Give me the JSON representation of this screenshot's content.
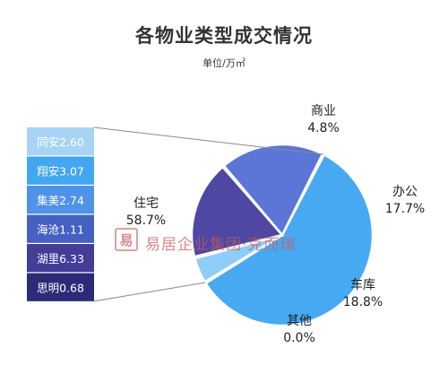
{
  "colors": {
    "residential": "#47a9f2",
    "commercial": "#8ecdf7",
    "office": "#4e48a3",
    "garage": "#5b76d6",
    "other": "#8a8a8a",
    "label_text": "#222222",
    "leader_line": "#8a8a8a"
  },
  "watermark": {
    "seal": "易",
    "text": "易居企业集团·克而瑞"
  },
  "chart_data": {
    "type": "pie",
    "title": "各物业类型成交情况",
    "subtitle": "单位/万㎡",
    "slices": [
      {
        "name": "住宅",
        "percent": 58.7,
        "percent_label": "58.7%",
        "color": "#47a9f2"
      },
      {
        "name": "商业",
        "percent": 4.8,
        "percent_label": "4.8%",
        "color": "#8ecdf7"
      },
      {
        "name": "办公",
        "percent": 17.7,
        "percent_label": "17.7%",
        "color": "#4e48a3"
      },
      {
        "name": "车库",
        "percent": 18.8,
        "percent_label": "18.8%",
        "color": "#5b76d6"
      },
      {
        "name": "其他",
        "percent": 0.0,
        "percent_label": "0.0%",
        "color": "#8a8a8a"
      }
    ],
    "breakdown": {
      "of_slice": "住宅",
      "type": "stacked-bar",
      "segments": [
        {
          "name": "同安",
          "value": 2.6,
          "label": "同安2.60",
          "color": "#a7d4f5"
        },
        {
          "name": "翔安",
          "value": 3.07,
          "label": "翔安3.07",
          "color": "#43a6f1"
        },
        {
          "name": "集美",
          "value": 2.74,
          "label": "集美2.74",
          "color": "#4f93e8"
        },
        {
          "name": "海沧",
          "value": 1.11,
          "label": "海沧1.11",
          "color": "#4561c2"
        },
        {
          "name": "湖里",
          "value": 6.33,
          "label": "湖里6.33",
          "color": "#433d98"
        },
        {
          "name": "思明",
          "value": 0.68,
          "label": "思明0.68",
          "color": "#2d2a78"
        }
      ]
    }
  }
}
